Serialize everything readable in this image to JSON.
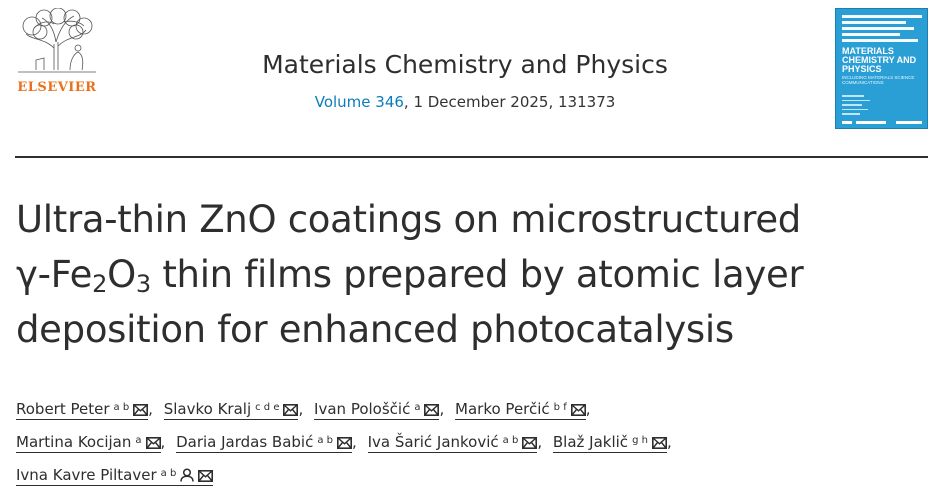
{
  "header": {
    "publisher_name": "ELSEVIER",
    "journal_title": "Materials Chemistry and Physics",
    "volume_label": "Volume 346",
    "issue_info": ", 1 December 2025, 131373"
  },
  "cover": {
    "title": "MATERIALS CHEMISTRY AND PHYSICS",
    "subtitle": "INCLUDING MATERIALS SCIENCE COMMUNICATIONS",
    "brand_color": "#2a9fd6"
  },
  "article": {
    "title_line1": "Ultra-thin ZnO coatings on microstructured",
    "title_line2_prefix": "γ-Fe",
    "title_sub1": "2",
    "title_mid": "O",
    "title_sub2": "3",
    "title_line2_suffix": " thin films prepared by atomic layer",
    "title_line3": "deposition for enhanced photocatalysis"
  },
  "authors": [
    {
      "name": "Robert Peter",
      "aff": "a b",
      "icons": [
        "email-icon"
      ]
    },
    {
      "name": "Slavko Kralj",
      "aff": "c d e",
      "icons": [
        "email-icon"
      ]
    },
    {
      "name": "Ivan Pološčić",
      "aff": "a",
      "icons": [
        "email-icon"
      ]
    },
    {
      "name": "Marko Perčić",
      "aff": "b f",
      "icons": [
        "email-icon"
      ]
    },
    {
      "name": "Martina Kocijan",
      "aff": "a",
      "icons": [
        "email-icon"
      ]
    },
    {
      "name": "Daria Jardas Babić",
      "aff": "a b",
      "icons": [
        "email-icon"
      ]
    },
    {
      "name": "Iva Šarić Janković",
      "aff": "a b",
      "icons": [
        "email-icon"
      ]
    },
    {
      "name": "Blaž Jaklič",
      "aff": "g h",
      "icons": [
        "email-icon"
      ]
    },
    {
      "name": "Ivna Kavre Piltaver",
      "aff": "a b",
      "icons": [
        "person-icon",
        "email-icon"
      ]
    }
  ],
  "colors": {
    "accent": "#0c7dbb",
    "publisher": "#e9711c",
    "text": "#2e2e2e"
  }
}
